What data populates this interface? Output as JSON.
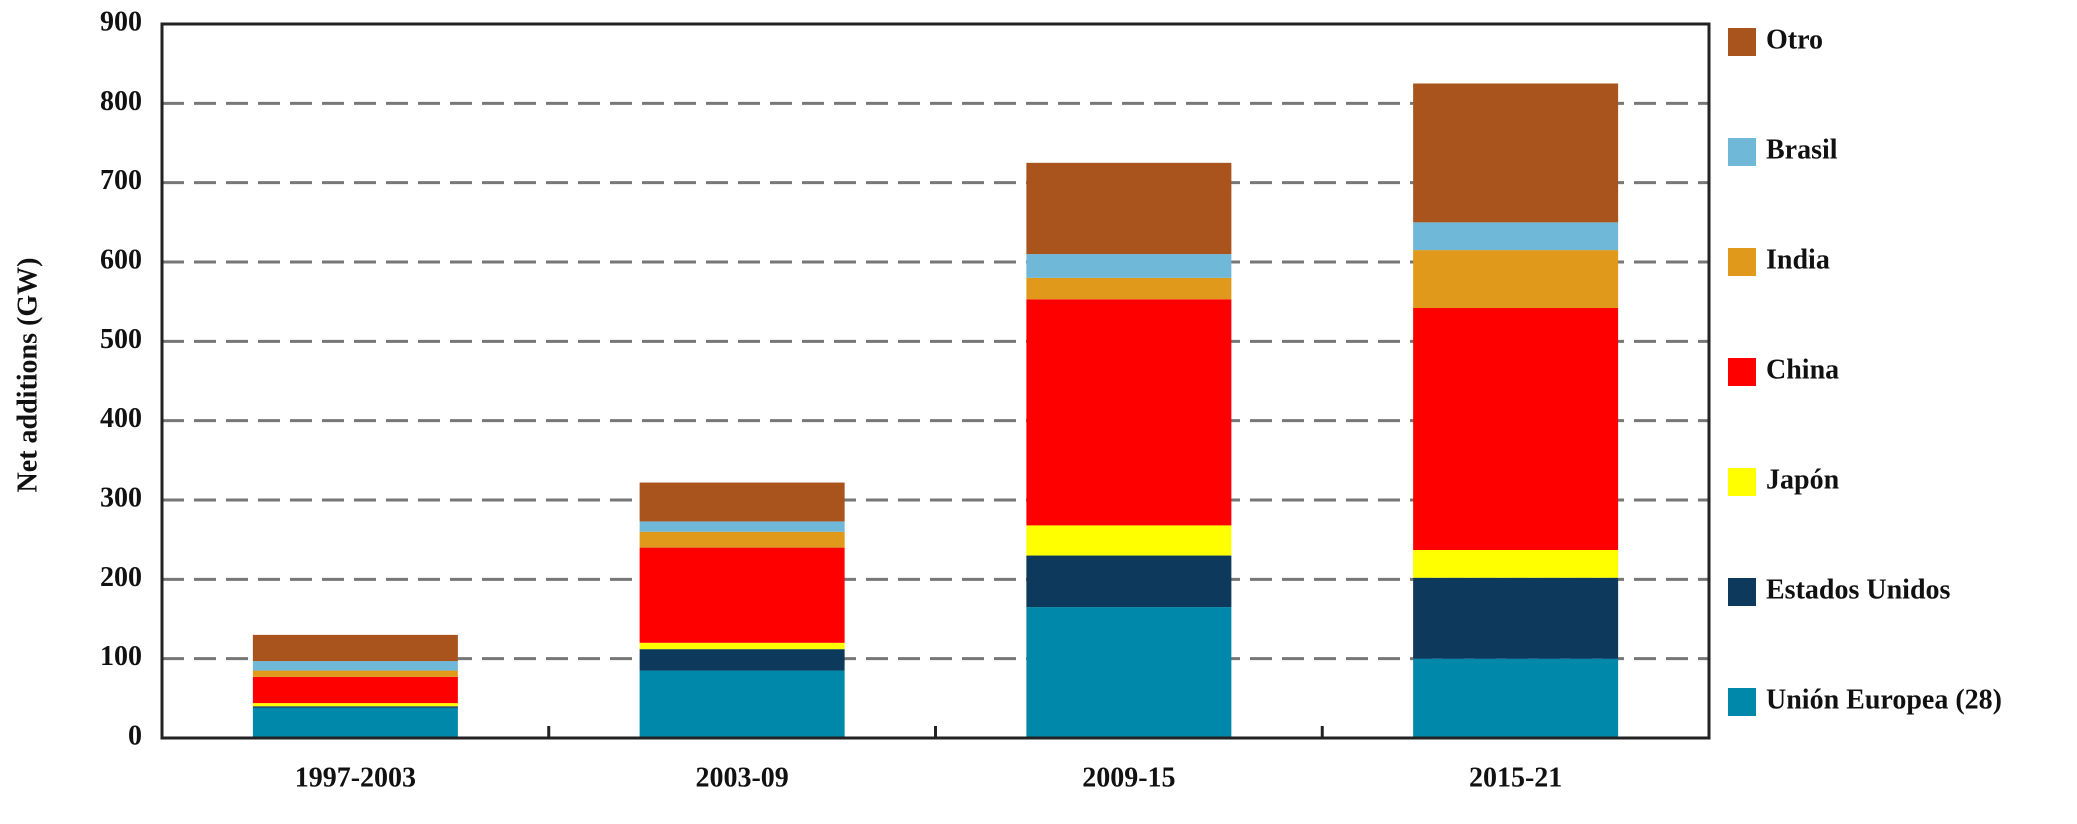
{
  "chart_data": {
    "type": "stacked_bar",
    "y_label": "Net additions (GW)",
    "categories": [
      "1997-2003",
      "2003-09",
      "2009-15",
      "2015-21"
    ],
    "series": [
      {
        "name": "Unión Europea (28)",
        "color": "#0088aa",
        "values": [
          38,
          85,
          165,
          100
        ]
      },
      {
        "name": "Estados Unidos",
        "color": "#0d3a5c",
        "values": [
          2,
          27,
          65,
          102
        ]
      },
      {
        "name": "Japón",
        "color": "#ffff00",
        "values": [
          4,
          8,
          38,
          35
        ]
      },
      {
        "name": "China",
        "color": "#ff0000",
        "values": [
          33,
          120,
          285,
          305
        ]
      },
      {
        "name": "India",
        "color": "#e0991a",
        "values": [
          8,
          20,
          27,
          73
        ]
      },
      {
        "name": "Brasil",
        "color": "#6fb8d8",
        "values": [
          12,
          13,
          30,
          35
        ]
      },
      {
        "name": "Otro",
        "color": "#a8541c",
        "values": [
          33,
          49,
          115,
          175
        ]
      }
    ],
    "ylim": [
      0,
      900
    ],
    "yticks": [
      0,
      100,
      200,
      300,
      400,
      500,
      600,
      700,
      800,
      900
    ],
    "grid": true,
    "legend": "right"
  }
}
